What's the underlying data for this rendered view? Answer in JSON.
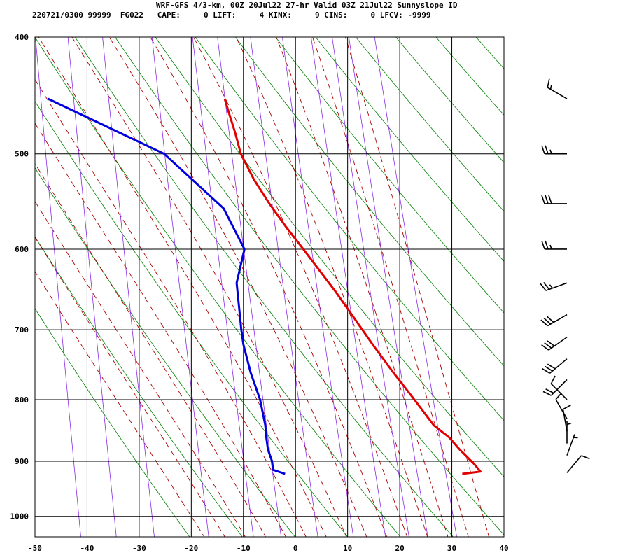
{
  "header": {
    "line1": "WRF-GFS 4/3-km, 00Z 20Jul22 27-hr Valid 03Z 21Jul22 Sunnyslope ID",
    "line2": "220721/0300 99999  FG022   CAPE:     0 LIFT:     4 KINX:     9 CINS:     0 LFCV: -9999"
  },
  "colors": {
    "temperature": "#e00000",
    "dewpoint": "#0000dd",
    "isotherm_grid": "#000000",
    "dry_adiabat": "#008000",
    "moist_adiabat": "#aa0000",
    "mixing_ratio": "#8a2be2",
    "wind_barb": "#000000"
  },
  "chart_data": {
    "type": "line",
    "subtype": "skew-T log-P sounding",
    "x_label": "",
    "y_label": "",
    "xlim": [
      -50,
      40
    ],
    "plim": [
      1040,
      400
    ],
    "y_scale": "log",
    "x_ticks": [
      -50,
      -40,
      -30,
      -20,
      -10,
      0,
      10,
      20,
      30,
      40
    ],
    "pressure_ticks": [
      400,
      500,
      600,
      700,
      800,
      900,
      1000
    ],
    "grid": true,
    "series": [
      {
        "key": "temperature",
        "points": [
          [
            922,
            32.0
          ],
          [
            918,
            35.5
          ],
          [
            905,
            34.3
          ],
          [
            880,
            31.5
          ],
          [
            860,
            29.5
          ],
          [
            840,
            26.5
          ],
          [
            800,
            22.8
          ],
          [
            760,
            18.8
          ],
          [
            720,
            14.8
          ],
          [
            680,
            10.8
          ],
          [
            650,
            7.6
          ],
          [
            620,
            4.0
          ],
          [
            600,
            1.5
          ],
          [
            575,
            -1.8
          ],
          [
            550,
            -5.0
          ],
          [
            525,
            -8.0
          ],
          [
            500,
            -10.5
          ],
          [
            480,
            -11.6
          ],
          [
            465,
            -12.6
          ],
          [
            450,
            -13.6
          ]
        ]
      },
      {
        "key": "dewpoint",
        "points": [
          [
            922,
            -2.0
          ],
          [
            915,
            -4.3
          ],
          [
            900,
            -4.5
          ],
          [
            880,
            -5.3
          ],
          [
            860,
            -5.6
          ],
          [
            840,
            -5.8
          ],
          [
            800,
            -6.8
          ],
          [
            760,
            -8.6
          ],
          [
            720,
            -10.0
          ],
          [
            700,
            -10.4
          ],
          [
            640,
            -11.3
          ],
          [
            600,
            -9.8
          ],
          [
            555,
            -13.8
          ],
          [
            500,
            -25.2
          ],
          [
            450,
            -47.5
          ]
        ]
      }
    ],
    "wind_barbs": [
      {
        "p": 450,
        "direction_deg": 300,
        "speed_kt": 15
      },
      {
        "p": 500,
        "direction_deg": 270,
        "speed_kt": 25
      },
      {
        "p": 550,
        "direction_deg": 270,
        "speed_kt": 30
      },
      {
        "p": 600,
        "direction_deg": 270,
        "speed_kt": 25
      },
      {
        "p": 640,
        "direction_deg": 250,
        "speed_kt": 25
      },
      {
        "p": 680,
        "direction_deg": 240,
        "speed_kt": 30
      },
      {
        "p": 710,
        "direction_deg": 235,
        "speed_kt": 30
      },
      {
        "p": 740,
        "direction_deg": 230,
        "speed_kt": 30
      },
      {
        "p": 770,
        "direction_deg": 225,
        "speed_kt": 20
      },
      {
        "p": 800,
        "direction_deg": 315,
        "speed_kt": 10
      },
      {
        "p": 830,
        "direction_deg": 330,
        "speed_kt": 10
      },
      {
        "p": 850,
        "direction_deg": 350,
        "speed_kt": 10
      },
      {
        "p": 870,
        "direction_deg": 0,
        "speed_kt": 5
      },
      {
        "p": 890,
        "direction_deg": 20,
        "speed_kt": 5
      },
      {
        "p": 920,
        "direction_deg": 40,
        "speed_kt": 10
      }
    ],
    "dry_adiabats_K": [
      250,
      260,
      270,
      280,
      290,
      300,
      310,
      320,
      330,
      340,
      350,
      360,
      370,
      380,
      390,
      400,
      410,
      420,
      430,
      440
    ],
    "moist_adiabats_C": [
      -20,
      -16,
      -12,
      -8,
      -4,
      0,
      4,
      8,
      12,
      16,
      20,
      24,
      28,
      32,
      36
    ],
    "mixing_ratio_gkg": [
      0.1,
      0.2,
      0.4,
      1,
      2,
      3,
      5,
      8,
      12,
      16,
      20,
      28
    ]
  }
}
